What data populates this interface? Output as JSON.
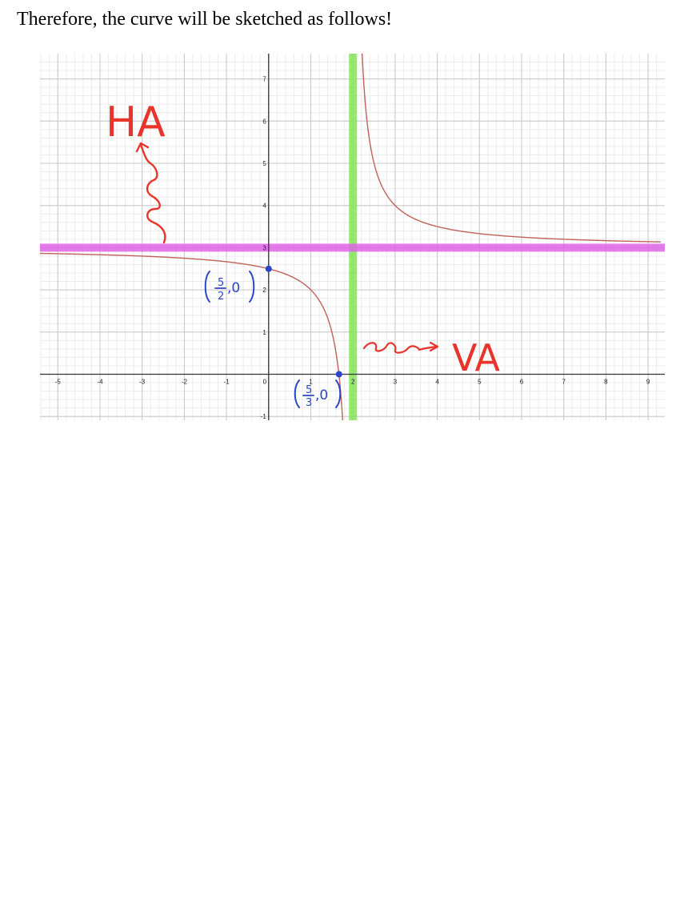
{
  "heading": "Therefore, the curve will be sketched as follows!",
  "chart_data": {
    "type": "line",
    "xlim": [
      -5.5,
      9.3
    ],
    "ylim": [
      -1.1,
      7.5
    ],
    "x_ticks": [
      -5,
      -4,
      -3,
      -2,
      -1,
      0,
      1,
      2,
      3,
      4,
      5,
      6,
      7,
      8,
      9
    ],
    "y_ticks": [
      -1,
      1,
      2,
      3,
      4,
      5,
      6,
      7
    ],
    "grid": true,
    "colors": {
      "curve": "#c0625a",
      "horizontal_asymptote": "#e163e8",
      "vertical_asymptote": "#84e35c",
      "points": "#2c46c8",
      "annotation_red": "#e8342a"
    },
    "horizontal_asymptote": {
      "y": 3,
      "label": "HA"
    },
    "vertical_asymptote": {
      "x": 2,
      "label": "VA"
    },
    "points": [
      {
        "x": 0,
        "y": 2.5,
        "label_top": "5",
        "label_bottom": "2",
        "label_rest": ",0"
      },
      {
        "x": 1.67,
        "y": 0,
        "label_top": "5",
        "label_bottom": "3",
        "label_rest": ",0"
      }
    ],
    "series": [
      {
        "values": [
          [
            -5.5,
            2.87
          ],
          [
            -3,
            2.8
          ],
          [
            -1,
            2.67
          ],
          [
            0,
            2.5
          ],
          [
            1,
            2
          ],
          [
            1.5,
            1
          ],
          [
            1.67,
            0
          ],
          [
            1.8,
            -2
          ]
        ]
      },
      {
        "values": [
          [
            2.2,
            8
          ],
          [
            2.5,
            5
          ],
          [
            3,
            4
          ],
          [
            4,
            3.5
          ],
          [
            5,
            3.33
          ],
          [
            7,
            3.2
          ],
          [
            9.3,
            3.14
          ]
        ]
      }
    ]
  }
}
